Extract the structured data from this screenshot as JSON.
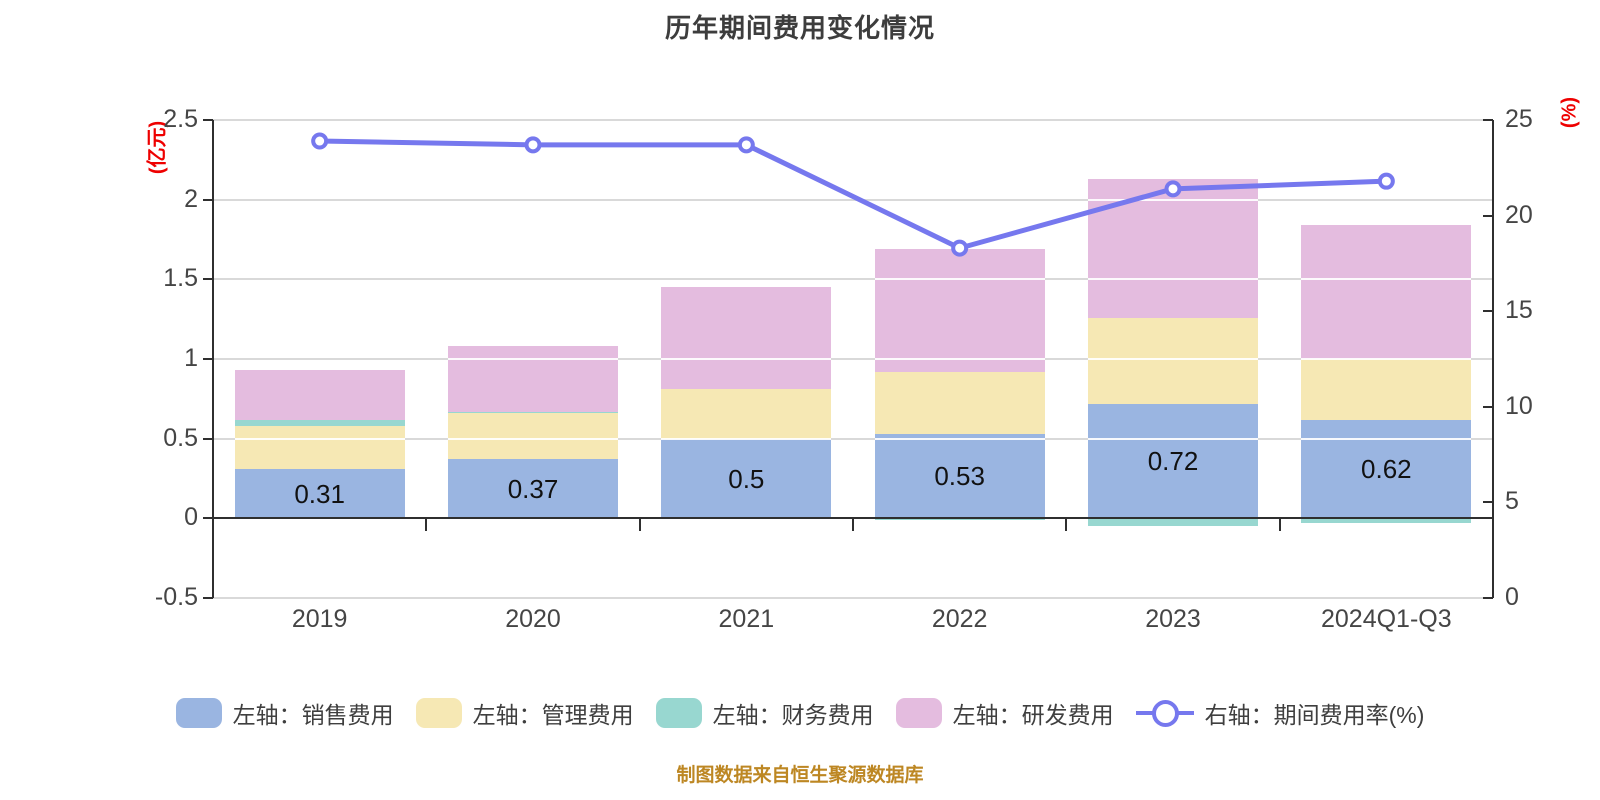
{
  "header": {
    "title": "历年期间费用变化情况"
  },
  "footer": {
    "source_note": "制图数据来自恒生聚源数据库"
  },
  "colors": {
    "title_text": "#3d3d3d",
    "axis_text": "#454545",
    "axis_unit_text": "#ee0000",
    "axis_line": "#2f2f2f",
    "grid_line": "#d9d9d9",
    "bar_sales": "#9ab5e1",
    "bar_admin": "#f6e8b4",
    "bar_finance": "#98d7d0",
    "bar_rnd": "#e4bcdf",
    "ratio_line": "#7678ee",
    "footer_text": "#bd8723"
  },
  "chart_data": {
    "type": "bar",
    "subtype": "stacked-bars-with-right-axis-line",
    "title": "历年期间费用变化情况",
    "categories": [
      "2019",
      "2020",
      "2021",
      "2022",
      "2023",
      "2024Q1-Q3"
    ],
    "series": [
      {
        "name": "左轴：销售费用",
        "type": "bar",
        "stack": true,
        "axis": "left",
        "color": "#9ab5e1",
        "values": [
          0.31,
          0.37,
          0.5,
          0.53,
          0.72,
          0.62
        ]
      },
      {
        "name": "左轴：管理费用",
        "type": "bar",
        "stack": true,
        "axis": "left",
        "color": "#f6e8b4",
        "values": [
          0.27,
          0.29,
          0.31,
          0.39,
          0.54,
          0.38
        ]
      },
      {
        "name": "左轴：财务费用",
        "type": "bar",
        "stack": true,
        "axis": "left",
        "color": "#98d7d0",
        "values": [
          0.04,
          0.01,
          0.0,
          -0.01,
          -0.05,
          -0.03
        ]
      },
      {
        "name": "左轴：研发费用",
        "type": "bar",
        "stack": true,
        "axis": "left",
        "color": "#e4bcdf",
        "values": [
          0.31,
          0.41,
          0.64,
          0.77,
          0.87,
          0.84
        ]
      },
      {
        "name": "右轴：期间费用率(%)",
        "type": "line",
        "stack": false,
        "axis": "right",
        "color": "#7678ee",
        "values": [
          23.9,
          23.7,
          23.7,
          18.3,
          21.4,
          21.8
        ]
      }
    ],
    "bar_value_labels": [
      "0.31",
      "0.37",
      "0.5",
      "0.53",
      "0.72",
      "0.62"
    ],
    "left_axis": {
      "unit": "(亿元)",
      "min": -0.5,
      "max": 2.5,
      "tick_labels": [
        "2.5",
        "2",
        "1.5",
        "1",
        "0.5",
        "0",
        "-0.5"
      ]
    },
    "right_axis": {
      "unit": "(%)",
      "min": 0,
      "max": 25,
      "tick_labels": [
        "25",
        "20",
        "15",
        "10",
        "5",
        "0"
      ]
    },
    "grid": true,
    "legend_position": "bottom"
  }
}
